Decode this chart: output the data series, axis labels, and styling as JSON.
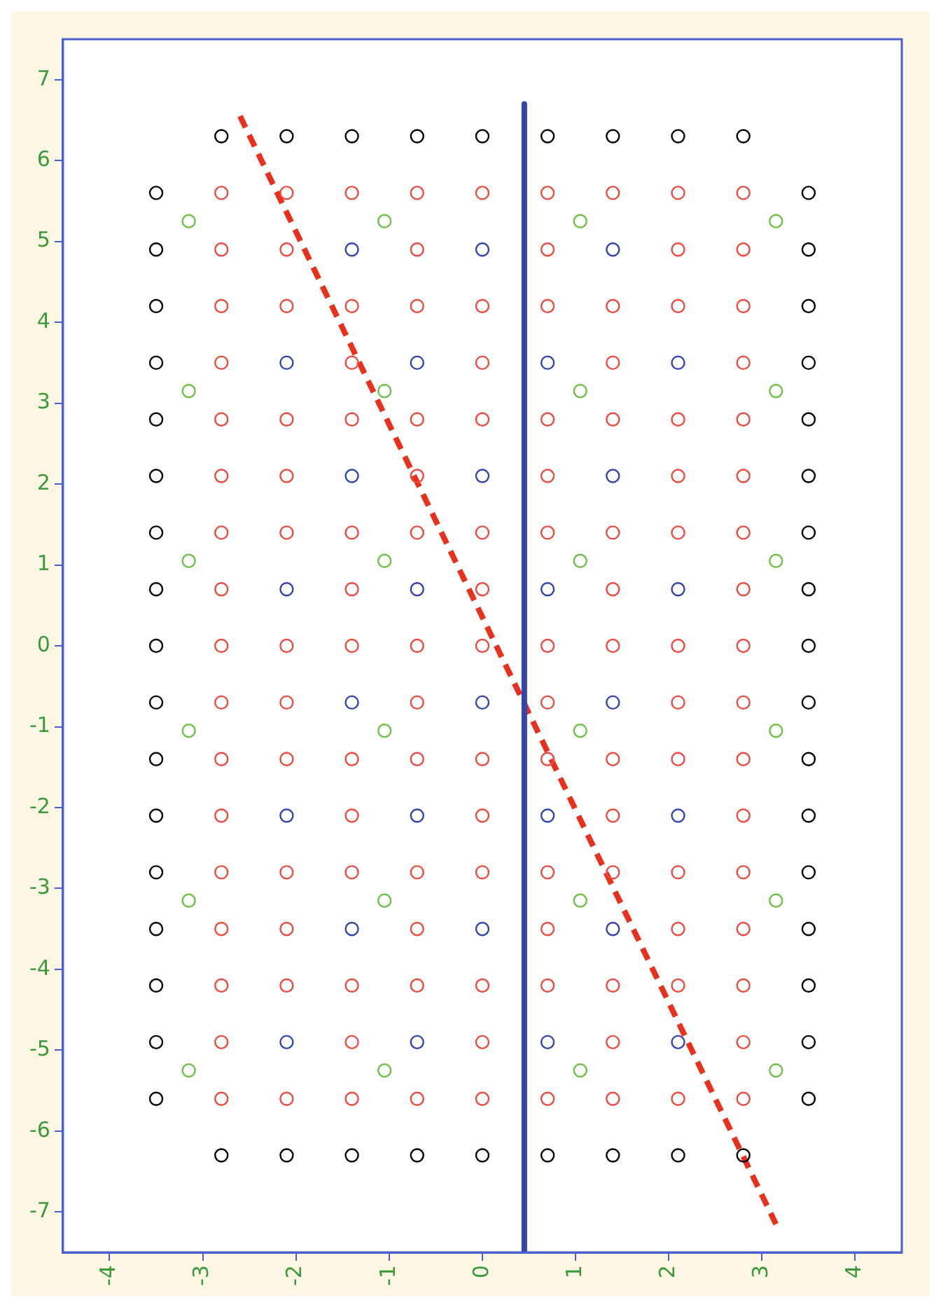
{
  "chart_data": {
    "type": "scatter",
    "xlim": [
      -4.5,
      4.5
    ],
    "ylim": [
      -7.5,
      7.5
    ],
    "xticks": [
      -4,
      -3,
      -2,
      -1,
      0,
      1,
      2,
      3,
      4
    ],
    "yticks": [
      -7,
      -6,
      -5,
      -4,
      -3,
      -2,
      -1,
      0,
      1,
      2,
      3,
      4,
      5,
      6,
      7
    ],
    "grid": false,
    "legend": false,
    "marker": "circle",
    "series": [
      {
        "type": "scatter",
        "color": "#000000",
        "x": [
          -2.8,
          -2.1,
          -1.4,
          -0.7,
          0,
          0.7,
          1.4,
          2.1,
          2.8,
          -2.8,
          -2.1,
          -1.4,
          -0.7,
          0,
          0.7,
          1.4,
          2.1,
          2.8,
          -3.5,
          -3.5,
          -3.5,
          -3.5,
          -3.5,
          -3.5,
          -3.5,
          -3.5,
          -3.5,
          -3.5,
          -3.5,
          -3.5,
          -3.5,
          -3.5,
          -3.5,
          -3.5,
          -3.5,
          3.5,
          3.5,
          3.5,
          3.5,
          3.5,
          3.5,
          3.5,
          3.5,
          3.5,
          3.5,
          3.5,
          3.5,
          3.5,
          3.5,
          3.5,
          3.5,
          3.5
        ],
        "values": [
          6.3,
          6.3,
          6.3,
          6.3,
          6.3,
          6.3,
          6.3,
          6.3,
          6.3,
          -6.3,
          -6.3,
          -6.3,
          -6.3,
          -6.3,
          -6.3,
          -6.3,
          -6.3,
          -6.3,
          5.6,
          4.9,
          4.2,
          3.5,
          2.8,
          2.1,
          1.4,
          0.7,
          0,
          -0.7,
          -1.4,
          -2.1,
          -2.8,
          -3.5,
          -4.2,
          -4.9,
          -5.6,
          5.6,
          4.9,
          4.2,
          3.5,
          2.8,
          2.1,
          1.4,
          0.7,
          0,
          -0.7,
          -1.4,
          -2.1,
          -2.8,
          -3.5,
          -4.2,
          -4.9,
          -5.6
        ]
      },
      {
        "type": "scatter",
        "color": "#ee4a40",
        "x": [
          -2.8,
          -2.1,
          -1.4,
          -0.7,
          0,
          0.7,
          1.4,
          2.1,
          2.8,
          -2.8,
          -2.1,
          -0.7,
          0.7,
          2.1,
          2.8,
          -2.8,
          -2.1,
          -1.4,
          -0.7,
          0,
          0.7,
          1.4,
          2.1,
          2.8,
          -2.8,
          -1.4,
          0,
          1.4,
          2.8,
          -2.8,
          -2.1,
          -1.4,
          -0.7,
          0,
          0.7,
          1.4,
          2.1,
          2.8,
          -2.8,
          -2.1,
          -0.7,
          0.7,
          2.1,
          2.8,
          -2.8,
          -2.1,
          -1.4,
          -0.7,
          0,
          0.7,
          1.4,
          2.1,
          2.8,
          -2.8,
          -1.4,
          0,
          1.4,
          2.8,
          -2.8,
          -2.1,
          -1.4,
          -0.7,
          0,
          0.7,
          1.4,
          2.1,
          2.8,
          -2.8,
          -2.1,
          -0.7,
          0.7,
          2.1,
          2.8,
          -2.8,
          -2.1,
          -1.4,
          -0.7,
          0,
          0.7,
          1.4,
          2.1,
          2.8,
          -2.8,
          -1.4,
          0,
          1.4,
          2.8,
          -2.8,
          -2.1,
          -1.4,
          -0.7,
          0,
          0.7,
          1.4,
          2.1,
          2.8,
          -2.8,
          -2.1,
          -0.7,
          0.7,
          2.1,
          2.8,
          -2.8,
          -2.1,
          -1.4,
          -0.7,
          0,
          0.7,
          1.4,
          2.1,
          2.8,
          -2.8,
          -1.4,
          0,
          1.4,
          2.8,
          -2.8,
          -2.1,
          -1.4,
          -0.7,
          0,
          0.7,
          1.4,
          2.1,
          2.8
        ],
        "values": [
          5.6,
          5.6,
          5.6,
          5.6,
          5.6,
          5.6,
          5.6,
          5.6,
          5.6,
          4.9,
          4.9,
          4.9,
          4.9,
          4.9,
          4.9,
          4.2,
          4.2,
          4.2,
          4.2,
          4.2,
          4.2,
          4.2,
          4.2,
          4.2,
          3.5,
          3.5,
          3.5,
          3.5,
          3.5,
          2.8,
          2.8,
          2.8,
          2.8,
          2.8,
          2.8,
          2.8,
          2.8,
          2.8,
          2.1,
          2.1,
          2.1,
          2.1,
          2.1,
          2.1,
          1.4,
          1.4,
          1.4,
          1.4,
          1.4,
          1.4,
          1.4,
          1.4,
          1.4,
          0.7,
          0.7,
          0.7,
          0.7,
          0.7,
          0,
          0,
          0,
          0,
          0,
          0,
          0,
          0,
          0,
          -0.7,
          -0.7,
          -0.7,
          -0.7,
          -0.7,
          -0.7,
          -1.4,
          -1.4,
          -1.4,
          -1.4,
          -1.4,
          -1.4,
          -1.4,
          -1.4,
          -1.4,
          -2.1,
          -2.1,
          -2.1,
          -2.1,
          -2.1,
          -2.8,
          -2.8,
          -2.8,
          -2.8,
          -2.8,
          -2.8,
          -2.8,
          -2.8,
          -2.8,
          -3.5,
          -3.5,
          -3.5,
          -3.5,
          -3.5,
          -3.5,
          -4.2,
          -4.2,
          -4.2,
          -4.2,
          -4.2,
          -4.2,
          -4.2,
          -4.2,
          -4.2,
          -4.9,
          -4.9,
          -4.9,
          -4.9,
          -4.9,
          -5.6,
          -5.6,
          -5.6,
          -5.6,
          -5.6,
          -5.6,
          -5.6,
          -5.6,
          -5.6
        ]
      },
      {
        "type": "scatter",
        "color": "#3344b0",
        "x": [
          -1.4,
          0,
          1.4,
          -2.1,
          -0.7,
          0.7,
          2.1,
          -1.4,
          0,
          1.4,
          -2.1,
          -0.7,
          0.7,
          2.1,
          -1.4,
          0,
          1.4,
          -2.1,
          -0.7,
          0.7,
          2.1,
          -1.4,
          0,
          1.4,
          -2.1,
          -0.7,
          0.7,
          2.1
        ],
        "values": [
          4.9,
          4.9,
          4.9,
          3.5,
          3.5,
          3.5,
          3.5,
          2.1,
          2.1,
          2.1,
          0.7,
          0.7,
          0.7,
          0.7,
          -0.7,
          -0.7,
          -0.7,
          -2.1,
          -2.1,
          -2.1,
          -2.1,
          -3.5,
          -3.5,
          -3.5,
          -4.9,
          -4.9,
          -4.9,
          -4.9
        ]
      },
      {
        "type": "scatter",
        "color": "#70c04a",
        "x": [
          -3.15,
          -1.05,
          1.05,
          3.15,
          -3.15,
          -1.05,
          1.05,
          3.15,
          -3.15,
          -1.05,
          1.05,
          3.15,
          -3.15,
          -1.05,
          1.05,
          3.15,
          -3.15,
          -1.05,
          1.05,
          3.15,
          -3.15,
          -1.05,
          1.05,
          3.15
        ],
        "values": [
          5.25,
          5.25,
          5.25,
          5.25,
          3.15,
          3.15,
          3.15,
          3.15,
          1.05,
          1.05,
          1.05,
          1.05,
          -1.05,
          -1.05,
          -1.05,
          -1.05,
          -3.15,
          -3.15,
          -3.15,
          -3.15,
          -5.25,
          -5.25,
          -5.25,
          -5.25
        ]
      },
      {
        "type": "line",
        "color": "#3344aa",
        "marker": "none",
        "line_style": "solid",
        "x": [
          0.45,
          0.45
        ],
        "values": [
          6.7,
          -7.5
        ]
      },
      {
        "type": "line",
        "color": "#e8301c",
        "marker": "none",
        "line_style": "dashed",
        "x": [
          -2.6,
          3.15
        ],
        "values": [
          6.55,
          -7.15
        ]
      }
    ]
  }
}
